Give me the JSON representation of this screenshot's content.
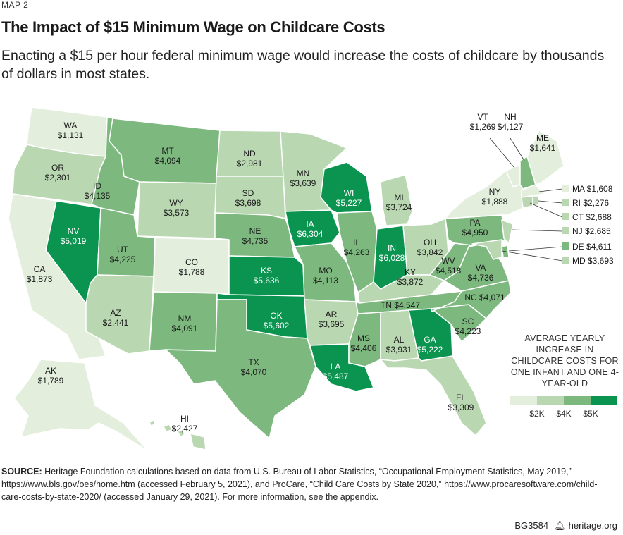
{
  "map_label": "MAP 2",
  "title": "The Impact of $15 Minimum Wage on Childcare Costs",
  "subtitle": "Enacting a $15 per hour federal minimum wage would increase the costs of childcare by thousands of dollars in most states.",
  "legend": {
    "title": "AVERAGE YEARLY INCREASE IN CHILDCARE COSTS FOR ONE INFANT AND ONE 4-YEAR-OLD",
    "colors": [
      "#e3eedd",
      "#b9d7b1",
      "#7db87f",
      "#0a9450"
    ],
    "tick_labels": [
      "$2K",
      "$4K",
      "$5K"
    ]
  },
  "states": {
    "WA": "$1,131",
    "OR": "$2,301",
    "CA": "$1,873",
    "NV": "$5,019",
    "ID": "$4,135",
    "MT": "$4,094",
    "WY": "$3,573",
    "UT": "$4,225",
    "AZ": "$2,441",
    "CO": "$1,788",
    "NM": "$4,091",
    "ND": "$2,981",
    "SD": "$3,698",
    "NE": "$4,735",
    "KS": "$5,636",
    "OK": "$5,602",
    "TX": "$4,070",
    "MN": "$3,639",
    "IA": "$6,304",
    "MO": "$4,113",
    "AR": "$3,695",
    "LA": "$5,487",
    "WI": "$5,227",
    "IL": "$4,263",
    "MS": "$4,406",
    "MI": "$3,724",
    "IN": "$6,028",
    "KY": "$3,872",
    "TN": "$4,547",
    "AL": "$3,931",
    "GA": "$5,222",
    "FL": "$3,309",
    "OH": "$3,842",
    "WV": "$4,518",
    "VA": "$4,736",
    "NC": "$4,071",
    "SC": "$4,223",
    "PA": "$4,950",
    "NY": "$1,888",
    "VT": "$1,269",
    "NH": "$4,127",
    "ME": "$1,641",
    "MA": "$1,608",
    "RI": "$2,276",
    "CT": "$2,688",
    "NJ": "$2,685",
    "DE": "$4,611",
    "MD": "$3,693",
    "AK": "$1,789",
    "HI": "$2,427"
  },
  "source_label": "SOURCE:",
  "source_text": "Heritage Foundation calculations based on data from U.S. Bureau of Labor Statistics, “Occupational Employment Statistics, May 2019,” https://www.bls.gov/oes/home.htm (accessed February 5, 2021), and ProCare, “Child Care Costs by State 2020,” https://www.procaresoftware.com/child-care-costs-by-state-2020/ (accessed January 29, 2021). For more information, see the appendix.",
  "footer": {
    "code": "BG3584",
    "icon": "bell-icon",
    "site": "heritage.org"
  }
}
